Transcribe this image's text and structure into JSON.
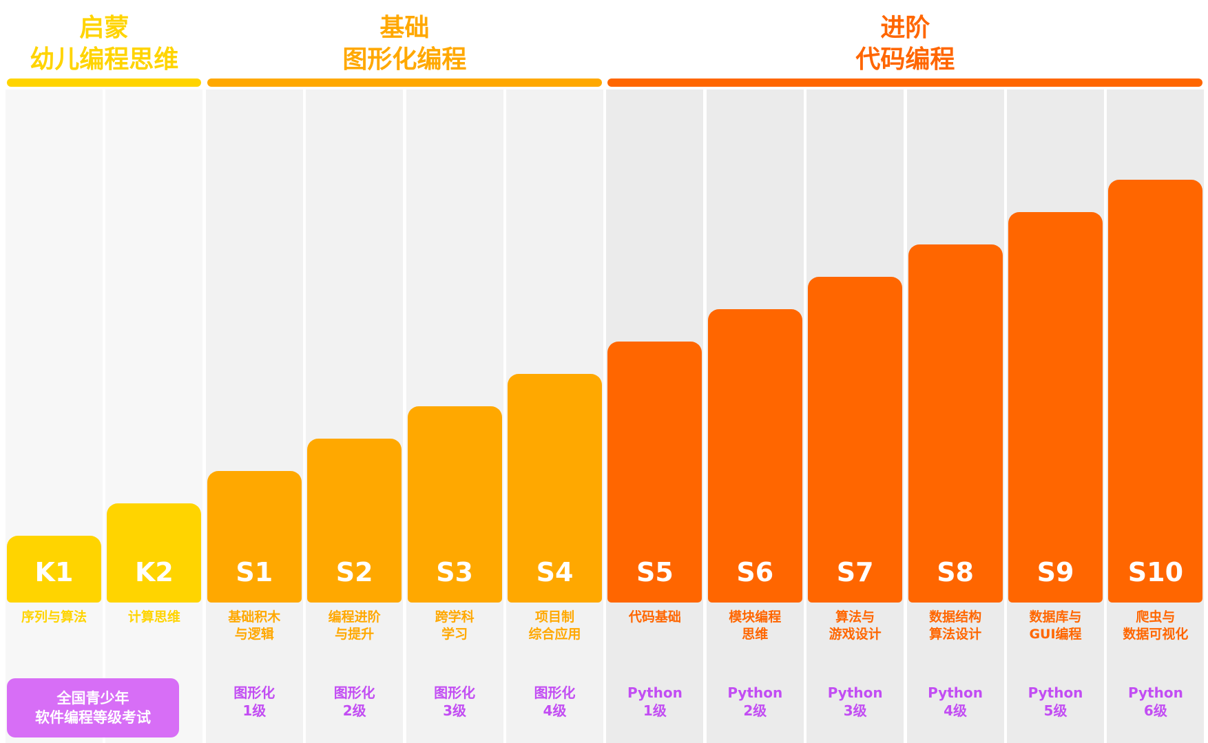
{
  "colors": {
    "enlighten": "#ffd400",
    "basic": "#ffa800",
    "advanced": "#ff6600",
    "cert_text": "#c24df3",
    "exam_badge": "#d76ef6"
  },
  "stages": [
    {
      "id": "enlighten",
      "title_line1": "启蒙",
      "title_line2": "幼儿编程思维"
    },
    {
      "id": "basic",
      "title_line1": "基础",
      "title_line2": "图形化编程"
    },
    {
      "id": "advanced",
      "title_line1": "进阶",
      "title_line2": "代码编程"
    }
  ],
  "exam_badge": {
    "line1": "全国青少年",
    "line2": "软件编程等级考试"
  },
  "chart_data": {
    "type": "bar",
    "categories": [
      "K1",
      "K2",
      "S1",
      "S2",
      "S3",
      "S4",
      "S5",
      "S6",
      "S7",
      "S8",
      "S9",
      "S10"
    ],
    "values": [
      1,
      2,
      3,
      4,
      5,
      6,
      7,
      8,
      9,
      10,
      11,
      12
    ],
    "title": "",
    "series": [
      {
        "values": [
          1,
          2,
          3,
          4,
          5,
          6,
          7,
          8,
          9,
          10,
          11,
          12
        ]
      }
    ],
    "stage_of_level": [
      "enlighten",
      "enlighten",
      "basic",
      "basic",
      "basic",
      "basic",
      "advanced",
      "advanced",
      "advanced",
      "advanced",
      "advanced",
      "advanced"
    ],
    "topics": [
      "序列与算法",
      "计算思维",
      "基础积木\n与逻辑",
      "编程进阶\n与提升",
      "跨学科\n学习",
      "项目制\n综合应用",
      "代码基础",
      "模块编程\n思维",
      "算法与\n游戏设计",
      "数据结构\n算法设计",
      "数据库与\nGUI编程",
      "爬虫与\n数据可视化"
    ],
    "certifications": [
      "",
      "",
      "图形化\n1级",
      "图形化\n2级",
      "图形化\n3级",
      "图形化\n4级",
      "Python\n1级",
      "Python\n2级",
      "Python\n3级",
      "Python\n4级",
      "Python\n5级",
      "Python\n6级"
    ],
    "grid": false,
    "legend": "none"
  }
}
